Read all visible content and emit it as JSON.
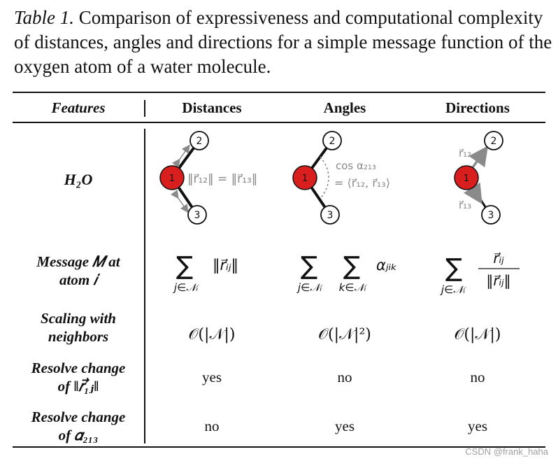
{
  "caption": {
    "label": "Table 1.",
    "text": "Comparison of expressiveness and computational complexity of distances, angles and directions for a simple message function of the oxygen atom of a water molecule."
  },
  "headers": {
    "features": "Features",
    "distances": "Distances",
    "angles": "Angles",
    "directions": "Directions"
  },
  "rows": {
    "h2o": "H₂O",
    "message": {
      "line1": "Message 𝑀 at",
      "line2": "atom 𝑖"
    },
    "scaling": {
      "line1": "Scaling with",
      "line2": "neighbors"
    },
    "resolve_distance": {
      "line1": "Resolve change",
      "line2": "of ‖𝑟⃗₁ⱼ‖"
    },
    "resolve_angle": {
      "line1": "Resolve change",
      "line2": "of 𝛼₂₁₃"
    }
  },
  "diagrams": {
    "atom_center": "1",
    "atom_top": "2",
    "atom_bottom": "3",
    "distance_label": "‖r⃗₁₂‖ = ‖r⃗₁₃‖",
    "angle_label_1": "cos α₂₁₃",
    "angle_label_2": "= ⟨r⃗₁₂, r⃗₁₃⟩",
    "direction_top": "r⃗₁₂",
    "direction_bottom": "r⃗₁₃"
  },
  "message_formulas": {
    "distances_body": "‖r⃗ᵢⱼ‖",
    "distances_sub": "j∈𝒩ᵢ",
    "angles_body": "αⱼᵢₖ",
    "angles_sub1": "j∈𝒩ᵢ",
    "angles_sub2": "k∈𝒩ᵢ",
    "directions_num": "r⃗ᵢⱼ",
    "directions_den": "‖r⃗ᵢⱼ‖",
    "directions_sub": "j∈𝒩ᵢ",
    "sum_symbol": "∑"
  },
  "scaling": {
    "distances": "𝒪(|𝒩|)",
    "angles": "𝒪(|𝒩|²)",
    "directions": "𝒪(|𝒩|)"
  },
  "resolve_distance": {
    "distances": "yes",
    "angles": "no",
    "directions": "no"
  },
  "resolve_angle": {
    "distances": "no",
    "angles": "yes",
    "directions": "yes"
  },
  "watermark": "CSDN @frank_haha",
  "colors": {
    "atom_fill": "#d91e1e",
    "bond": "#111111",
    "annotation": "#8a8a8a"
  }
}
